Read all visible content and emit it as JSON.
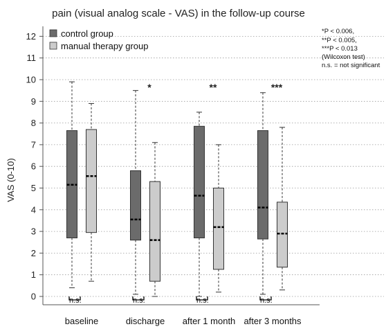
{
  "chart_data": {
    "type": "boxplot",
    "title": "pain (visual analog scale - VAS) in the follow-up course",
    "ylabel": "VAS  (0-10)",
    "xlabel": "",
    "ylim": [
      -0.3,
      12.5
    ],
    "yticks": [
      0,
      1,
      2,
      3,
      4,
      5,
      6,
      7,
      8,
      9,
      10,
      11,
      12
    ],
    "grid": "horizontal dotted",
    "legend_position": "top-left",
    "categories": [
      "baseline",
      "discharge",
      "after 1 month",
      "after 3 months"
    ],
    "series": [
      {
        "name": "control group",
        "color": "#6b6b6b",
        "boxes": [
          {
            "min": 0.4,
            "q1": 2.7,
            "median": 5.15,
            "q3": 7.65,
            "max": 9.9
          },
          {
            "min": 0.1,
            "q1": 2.6,
            "median": 3.55,
            "q3": 5.8,
            "max": 9.5
          },
          {
            "min": 0.0,
            "q1": 2.7,
            "median": 4.65,
            "q3": 7.85,
            "max": 8.5
          },
          {
            "min": 0.1,
            "q1": 2.65,
            "median": 4.1,
            "q3": 7.65,
            "max": 9.4
          }
        ]
      },
      {
        "name": "manual therapy group",
        "color": "#cccccc",
        "boxes": [
          {
            "min": 0.7,
            "q1": 2.95,
            "median": 5.55,
            "q3": 7.7,
            "max": 8.9
          },
          {
            "min": 0.0,
            "q1": 0.7,
            "median": 2.6,
            "q3": 5.3,
            "max": 7.1
          },
          {
            "min": 0.2,
            "q1": 1.25,
            "median": 3.2,
            "q3": 5.0,
            "max": 7.0
          },
          {
            "min": 0.3,
            "q1": 1.35,
            "median": 2.9,
            "q3": 4.35,
            "max": 7.8
          }
        ]
      }
    ],
    "within_group_significance": [
      "",
      "*",
      "**",
      "***"
    ],
    "between_group_labels": [
      "n.s.",
      "n.s.",
      "n.s.",
      "n.s."
    ],
    "footnote_lines": [
      "*P < 0.006,",
      "**P < 0.005,",
      "***P < 0.013",
      "(Wilcoxon  test)",
      "n.s. = not significant"
    ]
  }
}
